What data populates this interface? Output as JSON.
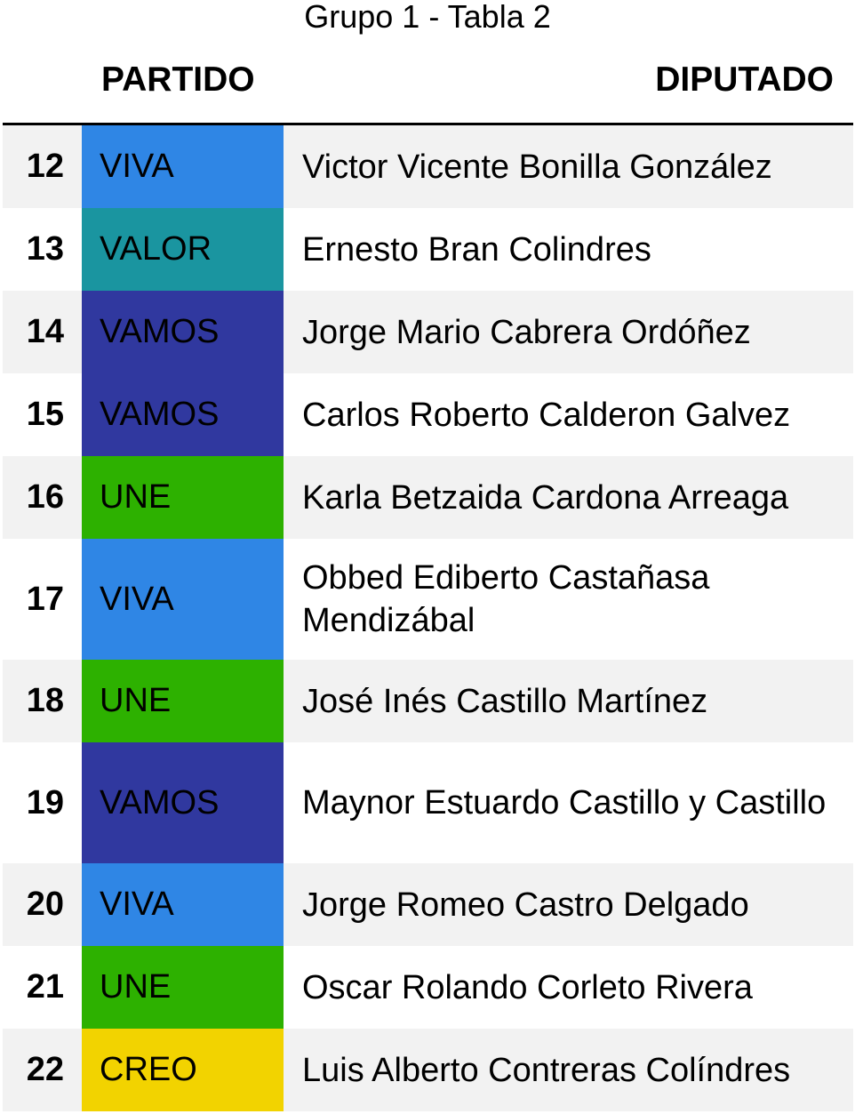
{
  "title": "Grupo 1 - Tabla 2",
  "headers": {
    "number": "",
    "party": "PARTIDO",
    "deputy": "DIPUTADO"
  },
  "party_colors": {
    "VIVA": "#2f86e5",
    "VALOR": "#1a95a0",
    "VAMOS": "#30389f",
    "UNE": "#2db100",
    "CREO": "#f2d300"
  },
  "rows": [
    {
      "number": "12",
      "party": "VIVA",
      "deputy": "Victor Vicente Bonilla González"
    },
    {
      "number": "13",
      "party": "VALOR",
      "deputy": "Ernesto Bran Colindres"
    },
    {
      "number": "14",
      "party": "VAMOS",
      "deputy": "Jorge Mario Cabrera Ordóñez"
    },
    {
      "number": "15",
      "party": "VAMOS",
      "deputy": "Carlos Roberto Calderon Galvez"
    },
    {
      "number": "16",
      "party": "UNE",
      "deputy": "Karla Betzaida Cardona Arreaga"
    },
    {
      "number": "17",
      "party": "VIVA",
      "deputy": "Obbed Ediberto Castañasa Mendizábal"
    },
    {
      "number": "18",
      "party": "UNE",
      "deputy": "José Inés Castillo Martínez"
    },
    {
      "number": "19",
      "party": "VAMOS",
      "deputy": "Maynor Estuardo Castillo y Castillo"
    },
    {
      "number": "20",
      "party": "VIVA",
      "deputy": "Jorge Romeo Castro Delgado"
    },
    {
      "number": "21",
      "party": "UNE",
      "deputy": "Oscar Rolando Corleto Rivera"
    },
    {
      "number": "22",
      "party": "CREO",
      "deputy": "Luis Alberto Contreras Colíndres"
    }
  ]
}
